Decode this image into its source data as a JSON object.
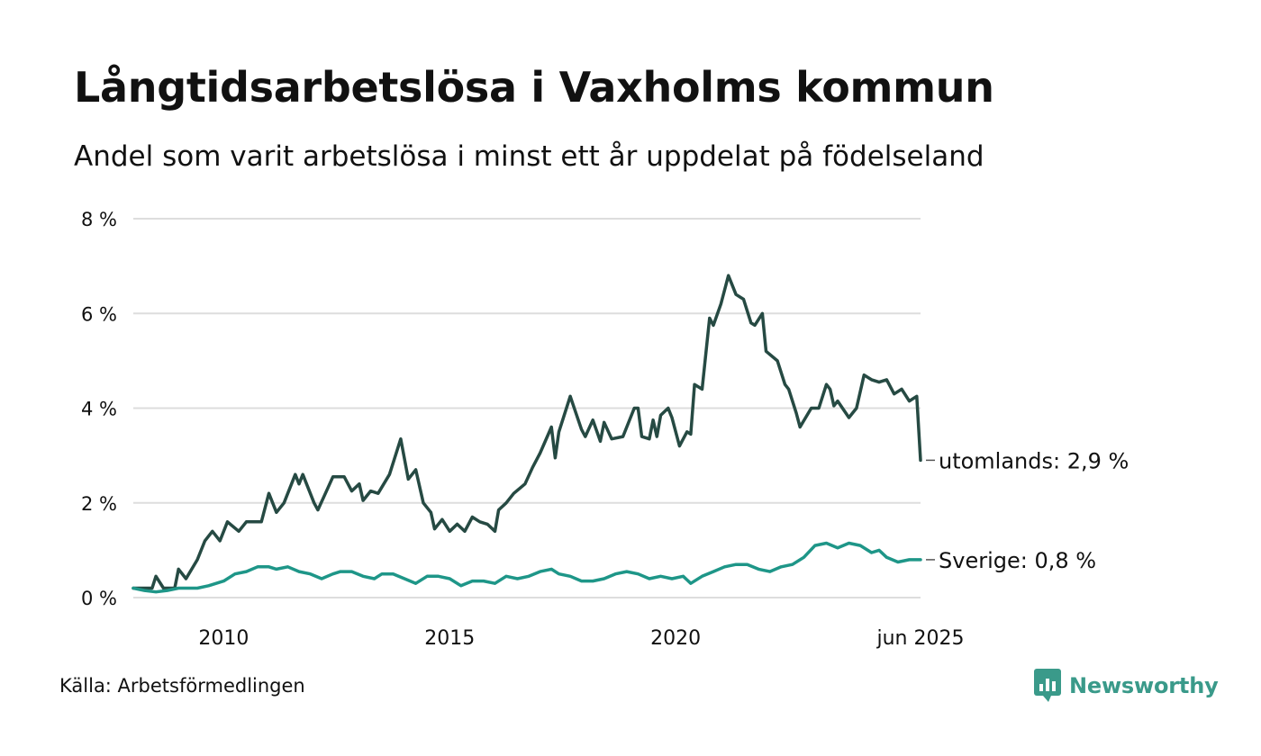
{
  "header": {
    "title": "Långtidsarbetslösa i Vaxholms kommun",
    "subtitle": "Andel som varit arbetslösa i minst ett år uppdelat på födelseland"
  },
  "footer": {
    "source": "Källa: Arbetsförmedlingen",
    "brand": "Newsworthy"
  },
  "colors": {
    "utomlands": "#264A43",
    "sverige": "#1E9688",
    "gridline": "#DDDDDD",
    "brand": "#3A9A8A",
    "text": "#111111"
  },
  "chart_data": {
    "type": "line",
    "ylim": [
      0,
      8
    ],
    "y_ticks": [
      {
        "value": 0,
        "label": "0 %"
      },
      {
        "value": 2,
        "label": "2 %"
      },
      {
        "value": 4,
        "label": "4 %"
      },
      {
        "value": 6,
        "label": "6 %"
      },
      {
        "value": 8,
        "label": "8 %"
      }
    ],
    "x_ticks": [
      {
        "value": "2010-01",
        "label": "2010"
      },
      {
        "value": "2015-01",
        "label": "2015"
      },
      {
        "value": "2020-01",
        "label": "2020"
      },
      {
        "value": "2025-06",
        "label": "jun 2025"
      }
    ],
    "x_start": "2008-01",
    "x_end": "2025-06",
    "grid": true,
    "legend": "end-of-line labels",
    "series": [
      {
        "name": "utomlands",
        "label": "utomlands: 2,9 %",
        "color_key": "utomlands",
        "points": [
          [
            "2008-01",
            0.2
          ],
          [
            "2008-06",
            0.2
          ],
          [
            "2008-07",
            0.45
          ],
          [
            "2008-09",
            0.2
          ],
          [
            "2008-12",
            0.2
          ],
          [
            "2009-01",
            0.6
          ],
          [
            "2009-03",
            0.4
          ],
          [
            "2009-06",
            0.8
          ],
          [
            "2009-08",
            1.2
          ],
          [
            "2009-10",
            1.4
          ],
          [
            "2009-12",
            1.2
          ],
          [
            "2010-02",
            1.6
          ],
          [
            "2010-05",
            1.4
          ],
          [
            "2010-07",
            1.6
          ],
          [
            "2010-11",
            1.6
          ],
          [
            "2011-01",
            2.2
          ],
          [
            "2011-03",
            1.8
          ],
          [
            "2011-05",
            2.0
          ],
          [
            "2011-08",
            2.6
          ],
          [
            "2011-09",
            2.4
          ],
          [
            "2011-10",
            2.6
          ],
          [
            "2012-01",
            2.0
          ],
          [
            "2012-02",
            1.85
          ],
          [
            "2012-04",
            2.2
          ],
          [
            "2012-06",
            2.55
          ],
          [
            "2012-09",
            2.55
          ],
          [
            "2012-11",
            2.25
          ],
          [
            "2013-01",
            2.4
          ],
          [
            "2013-02",
            2.05
          ],
          [
            "2013-04",
            2.25
          ],
          [
            "2013-06",
            2.2
          ],
          [
            "2013-09",
            2.6
          ],
          [
            "2013-12",
            3.35
          ],
          [
            "2014-02",
            2.5
          ],
          [
            "2014-04",
            2.7
          ],
          [
            "2014-06",
            2.0
          ],
          [
            "2014-08",
            1.8
          ],
          [
            "2014-09",
            1.45
          ],
          [
            "2014-11",
            1.65
          ],
          [
            "2015-01",
            1.4
          ],
          [
            "2015-03",
            1.55
          ],
          [
            "2015-05",
            1.4
          ],
          [
            "2015-07",
            1.7
          ],
          [
            "2015-09",
            1.6
          ],
          [
            "2015-11",
            1.55
          ],
          [
            "2016-01",
            1.4
          ],
          [
            "2016-02",
            1.85
          ],
          [
            "2016-04",
            2.0
          ],
          [
            "2016-06",
            2.2
          ],
          [
            "2016-09",
            2.4
          ],
          [
            "2016-11",
            2.75
          ],
          [
            "2017-01",
            3.05
          ],
          [
            "2017-04",
            3.6
          ],
          [
            "2017-05",
            2.95
          ],
          [
            "2017-06",
            3.5
          ],
          [
            "2017-09",
            4.25
          ],
          [
            "2017-12",
            3.55
          ],
          [
            "2018-01",
            3.4
          ],
          [
            "2018-03",
            3.75
          ],
          [
            "2018-05",
            3.3
          ],
          [
            "2018-06",
            3.7
          ],
          [
            "2018-08",
            3.35
          ],
          [
            "2018-11",
            3.4
          ],
          [
            "2019-02",
            4.0
          ],
          [
            "2019-03",
            4.0
          ],
          [
            "2019-04",
            3.4
          ],
          [
            "2019-06",
            3.35
          ],
          [
            "2019-07",
            3.75
          ],
          [
            "2019-08",
            3.4
          ],
          [
            "2019-09",
            3.85
          ],
          [
            "2019-11",
            4.0
          ],
          [
            "2019-12",
            3.8
          ],
          [
            "2020-02",
            3.2
          ],
          [
            "2020-04",
            3.5
          ],
          [
            "2020-05",
            3.45
          ],
          [
            "2020-06",
            4.5
          ],
          [
            "2020-08",
            4.4
          ],
          [
            "2020-10",
            5.9
          ],
          [
            "2020-11",
            5.75
          ],
          [
            "2021-01",
            6.2
          ],
          [
            "2021-03",
            6.8
          ],
          [
            "2021-05",
            6.4
          ],
          [
            "2021-07",
            6.3
          ],
          [
            "2021-09",
            5.8
          ],
          [
            "2021-10",
            5.75
          ],
          [
            "2021-12",
            6.0
          ],
          [
            "2022-01",
            5.2
          ],
          [
            "2022-04",
            5.0
          ],
          [
            "2022-06",
            4.5
          ],
          [
            "2022-07",
            4.4
          ],
          [
            "2022-09",
            3.9
          ],
          [
            "2022-10",
            3.6
          ],
          [
            "2023-01",
            4.0
          ],
          [
            "2023-03",
            4.0
          ],
          [
            "2023-05",
            4.5
          ],
          [
            "2023-06",
            4.4
          ],
          [
            "2023-07",
            4.05
          ],
          [
            "2023-08",
            4.15
          ],
          [
            "2023-11",
            3.8
          ],
          [
            "2024-01",
            4.0
          ],
          [
            "2024-03",
            4.7
          ],
          [
            "2024-05",
            4.6
          ],
          [
            "2024-07",
            4.55
          ],
          [
            "2024-09",
            4.6
          ],
          [
            "2024-11",
            4.3
          ],
          [
            "2025-01",
            4.4
          ],
          [
            "2025-03",
            4.15
          ],
          [
            "2025-05",
            4.25
          ],
          [
            "2025-06",
            2.9
          ]
        ]
      },
      {
        "name": "Sverige",
        "label": "Sverige: 0,8 %",
        "color_key": "sverige",
        "points": [
          [
            "2008-01",
            0.2
          ],
          [
            "2008-04",
            0.15
          ],
          [
            "2008-07",
            0.12
          ],
          [
            "2008-10",
            0.15
          ],
          [
            "2009-01",
            0.2
          ],
          [
            "2009-06",
            0.2
          ],
          [
            "2009-09",
            0.25
          ],
          [
            "2010-01",
            0.35
          ],
          [
            "2010-04",
            0.5
          ],
          [
            "2010-07",
            0.55
          ],
          [
            "2010-10",
            0.65
          ],
          [
            "2011-01",
            0.65
          ],
          [
            "2011-03",
            0.6
          ],
          [
            "2011-06",
            0.65
          ],
          [
            "2011-09",
            0.55
          ],
          [
            "2011-12",
            0.5
          ],
          [
            "2012-03",
            0.4
          ],
          [
            "2012-06",
            0.5
          ],
          [
            "2012-08",
            0.55
          ],
          [
            "2012-11",
            0.55
          ],
          [
            "2013-02",
            0.45
          ],
          [
            "2013-05",
            0.4
          ],
          [
            "2013-07",
            0.5
          ],
          [
            "2013-10",
            0.5
          ],
          [
            "2014-01",
            0.4
          ],
          [
            "2014-04",
            0.3
          ],
          [
            "2014-07",
            0.45
          ],
          [
            "2014-10",
            0.45
          ],
          [
            "2015-01",
            0.4
          ],
          [
            "2015-04",
            0.25
          ],
          [
            "2015-07",
            0.35
          ],
          [
            "2015-10",
            0.35
          ],
          [
            "2016-01",
            0.3
          ],
          [
            "2016-04",
            0.45
          ],
          [
            "2016-07",
            0.4
          ],
          [
            "2016-10",
            0.45
          ],
          [
            "2017-01",
            0.55
          ],
          [
            "2017-04",
            0.6
          ],
          [
            "2017-06",
            0.5
          ],
          [
            "2017-09",
            0.45
          ],
          [
            "2017-12",
            0.35
          ],
          [
            "2018-03",
            0.35
          ],
          [
            "2018-06",
            0.4
          ],
          [
            "2018-09",
            0.5
          ],
          [
            "2018-12",
            0.55
          ],
          [
            "2019-03",
            0.5
          ],
          [
            "2019-06",
            0.4
          ],
          [
            "2019-09",
            0.45
          ],
          [
            "2019-12",
            0.4
          ],
          [
            "2020-03",
            0.45
          ],
          [
            "2020-05",
            0.3
          ],
          [
            "2020-08",
            0.45
          ],
          [
            "2020-11",
            0.55
          ],
          [
            "2021-02",
            0.65
          ],
          [
            "2021-05",
            0.7
          ],
          [
            "2021-08",
            0.7
          ],
          [
            "2021-11",
            0.6
          ],
          [
            "2022-02",
            0.55
          ],
          [
            "2022-05",
            0.65
          ],
          [
            "2022-08",
            0.7
          ],
          [
            "2022-11",
            0.85
          ],
          [
            "2023-02",
            1.1
          ],
          [
            "2023-05",
            1.15
          ],
          [
            "2023-08",
            1.05
          ],
          [
            "2023-11",
            1.15
          ],
          [
            "2024-02",
            1.1
          ],
          [
            "2024-05",
            0.95
          ],
          [
            "2024-07",
            1.0
          ],
          [
            "2024-09",
            0.85
          ],
          [
            "2024-12",
            0.75
          ],
          [
            "2025-03",
            0.8
          ],
          [
            "2025-06",
            0.8
          ]
        ]
      }
    ]
  }
}
